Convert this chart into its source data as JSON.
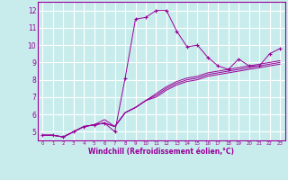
{
  "title": "",
  "xlabel": "Windchill (Refroidissement éolien,°C)",
  "background_color": "#c8ecec",
  "line_color": "#990099",
  "grid_color": "#ffffff",
  "x_ticks": [
    0,
    1,
    2,
    3,
    4,
    5,
    6,
    7,
    8,
    9,
    10,
    11,
    12,
    13,
    14,
    15,
    16,
    17,
    18,
    19,
    20,
    21,
    22,
    23
  ],
  "y_ticks": [
    5,
    6,
    7,
    8,
    9,
    10,
    11,
    12
  ],
  "xlim": [
    -0.5,
    23.5
  ],
  "ylim": [
    4.5,
    12.5
  ],
  "series": [
    [
      4.8,
      4.8,
      4.7,
      5.0,
      5.3,
      5.4,
      5.5,
      5.0,
      8.1,
      11.5,
      11.6,
      12.0,
      12.0,
      10.8,
      9.9,
      10.0,
      9.3,
      8.8,
      8.6,
      9.2,
      8.8,
      8.8,
      9.5,
      9.8
    ],
    [
      4.8,
      4.8,
      4.7,
      5.0,
      5.3,
      5.4,
      5.5,
      5.3,
      6.1,
      6.4,
      6.8,
      7.2,
      7.6,
      7.9,
      8.1,
      8.2,
      8.4,
      8.5,
      8.6,
      8.7,
      8.8,
      8.9,
      9.0,
      9.1
    ],
    [
      4.8,
      4.8,
      4.7,
      5.0,
      5.3,
      5.4,
      5.5,
      5.3,
      6.1,
      6.4,
      6.8,
      7.1,
      7.5,
      7.8,
      8.0,
      8.1,
      8.3,
      8.4,
      8.5,
      8.6,
      8.7,
      8.8,
      8.9,
      9.0
    ],
    [
      4.8,
      4.8,
      4.7,
      5.0,
      5.3,
      5.4,
      5.7,
      5.3,
      6.1,
      6.4,
      6.8,
      7.0,
      7.4,
      7.7,
      7.9,
      8.0,
      8.2,
      8.3,
      8.4,
      8.5,
      8.6,
      8.7,
      8.8,
      8.9
    ]
  ],
  "xlabel_fontsize": 5.5,
  "tick_fontsize_x": 4.0,
  "tick_fontsize_y": 5.5
}
